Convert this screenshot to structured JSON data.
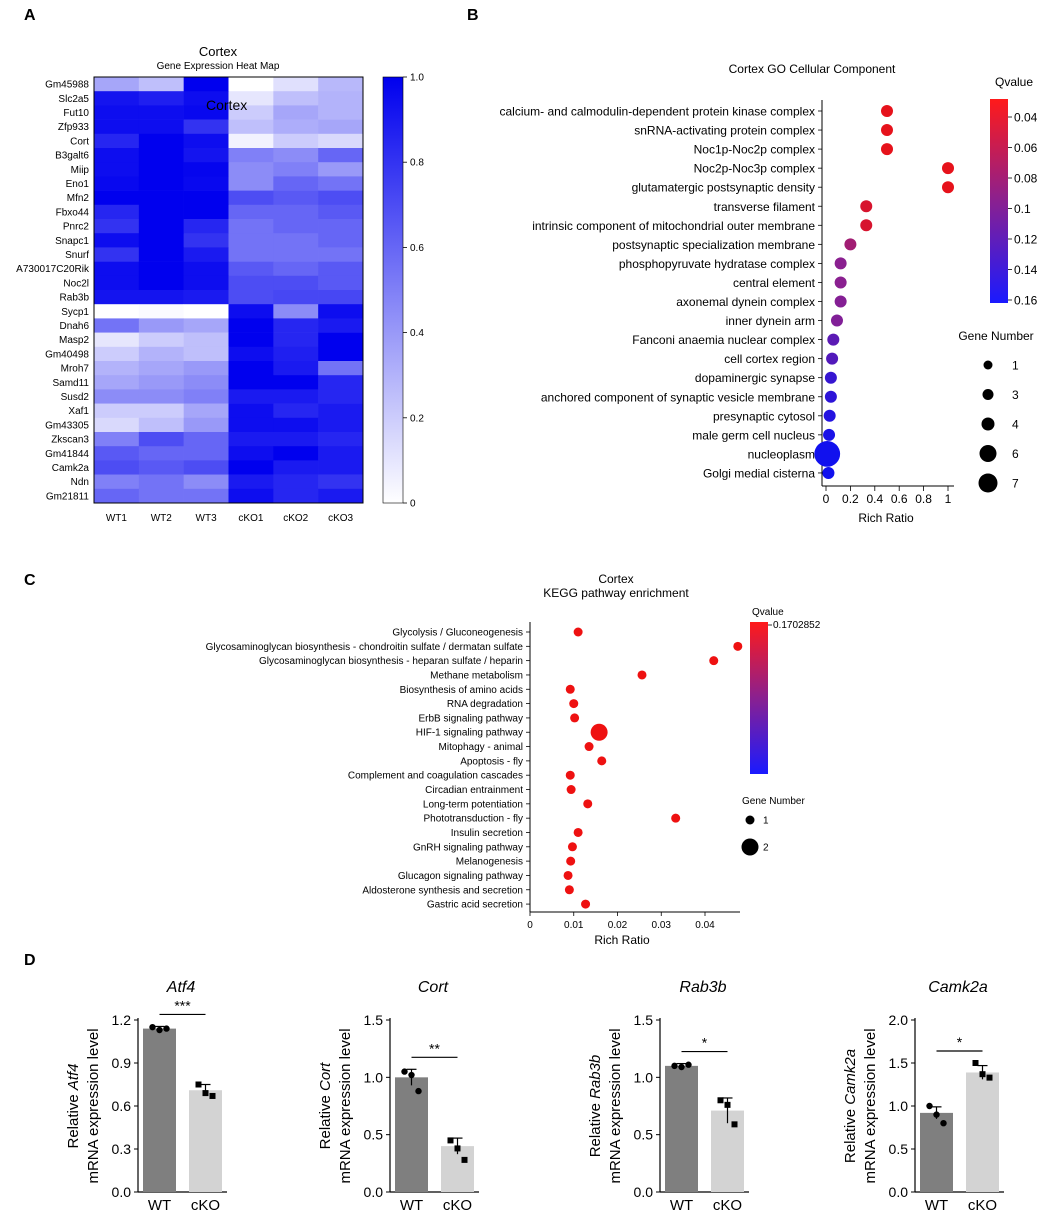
{
  "panel_labels": [
    "A",
    "B",
    "C",
    "D"
  ],
  "colors": {
    "heat_high": "#0000ee",
    "heat_low": "#ffffff",
    "q_low": "#ee1111",
    "q_high": "#1111ee",
    "wt_bar": "#7f7f7f",
    "cko_bar": "#d3d3d3"
  },
  "chart_data": [
    {
      "type": "heatmap",
      "title": "Cortex",
      "subtitle": "Gene Expression Heat Map",
      "overlay_label": "Cortex",
      "rows": [
        "Gm45988",
        "Slc2a5",
        "Fut10",
        "Zfp933",
        "Cort",
        "B3galt6",
        "Miip",
        "Eno1",
        "Mfn2",
        "Fbxo44",
        "Pnrc2",
        "Snapc1",
        "Snurf",
        "A730017C20Rik",
        "Noc2l",
        "Rab3b",
        "Sycp1",
        "Dnah6",
        "Masp2",
        "Gm40498",
        "Mroh7",
        "Samd11",
        "Susd2",
        "Xaf1",
        "Gm43305",
        "Zkscan3",
        "Gm41844",
        "Camk2a",
        "Ndn",
        "Gm21811"
      ],
      "columns": [
        "WT1",
        "WT2",
        "WT3",
        "cKO1",
        "cKO2",
        "cKO3"
      ],
      "values": [
        [
          0.35,
          0.25,
          1.0,
          0.0,
          0.12,
          0.28
        ],
        [
          0.92,
          0.88,
          0.95,
          0.1,
          0.25,
          0.3
        ],
        [
          0.95,
          0.95,
          0.97,
          0.2,
          0.35,
          0.3
        ],
        [
          0.95,
          0.95,
          0.8,
          0.25,
          0.32,
          0.35
        ],
        [
          0.85,
          1.0,
          0.95,
          0.05,
          0.2,
          0.15
        ],
        [
          0.95,
          1.0,
          0.92,
          0.5,
          0.45,
          0.6
        ],
        [
          0.95,
          1.0,
          0.98,
          0.45,
          0.5,
          0.4
        ],
        [
          0.97,
          1.0,
          0.97,
          0.45,
          0.6,
          0.55
        ],
        [
          1.0,
          1.0,
          1.0,
          0.7,
          0.65,
          0.7
        ],
        [
          0.85,
          1.0,
          1.0,
          0.6,
          0.6,
          0.65
        ],
        [
          0.8,
          1.0,
          0.85,
          0.55,
          0.6,
          0.6
        ],
        [
          0.95,
          1.0,
          0.8,
          0.55,
          0.55,
          0.6
        ],
        [
          0.8,
          1.0,
          0.9,
          0.55,
          0.55,
          0.55
        ],
        [
          0.95,
          1.0,
          0.95,
          0.65,
          0.6,
          0.65
        ],
        [
          0.95,
          1.0,
          0.95,
          0.7,
          0.7,
          0.65
        ],
        [
          0.92,
          0.92,
          0.9,
          0.7,
          0.72,
          0.72
        ],
        [
          0.0,
          0.02,
          0.0,
          0.95,
          0.45,
          0.95
        ],
        [
          0.55,
          0.4,
          0.35,
          1.0,
          0.85,
          0.9
        ],
        [
          0.1,
          0.2,
          0.25,
          1.0,
          0.85,
          1.0
        ],
        [
          0.2,
          0.3,
          0.25,
          0.95,
          0.88,
          1.0
        ],
        [
          0.3,
          0.35,
          0.4,
          1.0,
          0.9,
          0.55
        ],
        [
          0.35,
          0.4,
          0.45,
          1.0,
          1.0,
          0.85
        ],
        [
          0.45,
          0.45,
          0.5,
          0.9,
          0.9,
          0.85
        ],
        [
          0.2,
          0.2,
          0.35,
          0.95,
          0.85,
          0.9
        ],
        [
          0.15,
          0.25,
          0.4,
          0.95,
          0.95,
          0.9
        ],
        [
          0.5,
          0.7,
          0.6,
          0.9,
          0.9,
          0.85
        ],
        [
          0.65,
          0.6,
          0.6,
          0.95,
          1.0,
          0.9
        ],
        [
          0.7,
          0.65,
          0.7,
          1.0,
          0.9,
          0.9
        ],
        [
          0.5,
          0.55,
          0.45,
          0.9,
          0.85,
          0.8
        ],
        [
          0.6,
          0.55,
          0.55,
          0.95,
          0.85,
          0.9
        ]
      ],
      "colorbar": {
        "range": [
          0,
          1.0
        ],
        "ticks": [
          "1.0",
          "0.8",
          "0.6",
          "0.4",
          "0.2",
          "0"
        ]
      }
    },
    {
      "type": "scatter",
      "title": "Cortex GO Cellular Component",
      "xlabel": "Rich Ratio",
      "xlim": [
        0,
        1.02
      ],
      "xticks": [
        "0",
        "0.2",
        "0.4",
        "0.6",
        "0.8",
        "1"
      ],
      "categories": [
        "calcium- and calmodulin-dependent protein kinase complex",
        "snRNA-activating protein complex",
        "Noc1p-Noc2p complex",
        "Noc2p-Noc3p complex",
        "glutamatergic postsynaptic density",
        "transverse filament",
        "intrinsic component of mitochondrial outer membrane",
        "postsynaptic specialization membrane",
        "phosphopyruvate hydratase complex",
        "central element",
        "axonemal dynein complex",
        "inner dynein arm",
        "Fanconi anaemia nuclear complex",
        "cell cortex region",
        "dopaminergic synapse",
        "anchored component of synaptic vesicle membrane",
        "presynaptic cytosol",
        "male germ cell nucleus",
        "nucleoplasm",
        "Golgi medial cisterna"
      ],
      "rich_ratio": [
        0.5,
        0.5,
        0.5,
        1.0,
        1.0,
        0.33,
        0.33,
        0.2,
        0.12,
        0.12,
        0.12,
        0.09,
        0.06,
        0.05,
        0.04,
        0.04,
        0.03,
        0.025,
        0.01,
        0.02
      ],
      "qvalue": [
        0.035,
        0.035,
        0.035,
        0.035,
        0.035,
        0.045,
        0.045,
        0.08,
        0.095,
        0.095,
        0.098,
        0.1,
        0.12,
        0.125,
        0.14,
        0.145,
        0.15,
        0.155,
        0.16,
        0.16
      ],
      "gene_number": [
        1,
        1,
        1,
        1,
        1,
        1,
        1,
        1,
        1,
        1,
        1,
        1,
        1,
        1,
        1,
        1,
        1,
        1,
        7,
        1
      ],
      "qvalue_legend": {
        "title": "Qvalue",
        "range": [
          0.03,
          0.16
        ],
        "ticks": [
          "0.04",
          "0.06",
          "0.08",
          "0.1",
          "0.12",
          "0.14",
          "0.16"
        ]
      },
      "size_legend": {
        "title": "Gene Number",
        "values": [
          "1",
          "3",
          "4",
          "6",
          "7"
        ]
      }
    },
    {
      "type": "scatter",
      "title": "Cortex",
      "subtitle": "KEGG pathway enrichment",
      "xlabel": "Rich Ratio",
      "xlim": [
        0,
        0.048
      ],
      "xticks": [
        "0",
        "0.01",
        "0.02",
        "0.03",
        "0.04"
      ],
      "categories": [
        "Glycolysis / Gluconeogenesis",
        "Glycosaminoglycan biosynthesis - chondroitin sulfate / dermatan sulfate",
        "Glycosaminoglycan biosynthesis - heparan sulfate / heparin",
        "Methane metabolism",
        "Biosynthesis of amino acids",
        "RNA degradation",
        "ErbB signaling pathway",
        "HIF-1 signaling pathway",
        "Mitophagy - animal",
        "Apoptosis - fly",
        "Complement and coagulation cascades",
        "Circadian entrainment",
        "Long-term potentiation",
        "Phototransduction - fly",
        "Insulin secretion",
        "GnRH signaling pathway",
        "Melanogenesis",
        "Glucagon signaling pathway",
        "Aldosterone synthesis and secretion",
        "Gastric acid secretion"
      ],
      "rich_ratio": [
        0.011,
        0.0475,
        0.042,
        0.0256,
        0.0092,
        0.01,
        0.0102,
        0.0158,
        0.0135,
        0.0164,
        0.0092,
        0.0094,
        0.0132,
        0.0333,
        0.011,
        0.0097,
        0.0093,
        0.0087,
        0.009,
        0.0127
      ],
      "gene_number": [
        1,
        1,
        1,
        1,
        1,
        1,
        1,
        2,
        1,
        1,
        1,
        1,
        1,
        1,
        1,
        1,
        1,
        1,
        1,
        1
      ],
      "qvalue_legend": {
        "title": "Qvalue",
        "tick": "0.1702852"
      },
      "size_legend": {
        "title": "Gene Number",
        "values": [
          "1",
          "2"
        ]
      }
    },
    {
      "type": "bar",
      "panels": [
        {
          "gene": "Atf4",
          "ylabel_prefix": "Relative",
          "ylabel_line2": "mRNA expression level",
          "categories": [
            "WT",
            "cKO"
          ],
          "values": [
            1.14,
            0.71
          ],
          "sem": [
            0.015,
            0.04
          ],
          "points": [
            [
              1.15,
              1.13,
              1.14
            ],
            [
              0.75,
              0.69,
              0.67
            ]
          ],
          "ylim": [
            0,
            1.2
          ],
          "yticks": [
            "0.0",
            "0.3",
            "0.6",
            "0.9",
            "1.2"
          ],
          "significance": "***"
        },
        {
          "gene": "Cort",
          "ylabel_prefix": "Relative",
          "ylabel_line2": "mRNA expression level",
          "categories": [
            "WT",
            "cKO"
          ],
          "values": [
            1.0,
            0.4
          ],
          "sem": [
            0.07,
            0.07
          ],
          "points": [
            [
              1.05,
              1.02,
              0.88
            ],
            [
              0.45,
              0.38,
              0.28
            ]
          ],
          "ylim": [
            0,
            1.5
          ],
          "yticks": [
            "0.0",
            "0.5",
            "1.0",
            "1.5"
          ],
          "significance": "**"
        },
        {
          "gene": "Rab3b",
          "ylabel_prefix": "Relative",
          "ylabel_line2": "mRNA expression level",
          "categories": [
            "WT",
            "cKO"
          ],
          "values": [
            1.1,
            0.71
          ],
          "sem": [
            0.02,
            0.11
          ],
          "points": [
            [
              1.1,
              1.09,
              1.11
            ],
            [
              0.8,
              0.76,
              0.59
            ]
          ],
          "ylim": [
            0,
            1.5
          ],
          "yticks": [
            "0.0",
            "0.5",
            "1.0",
            "1.5"
          ],
          "significance": "*"
        },
        {
          "gene": "Camk2a",
          "ylabel_prefix": "Relative",
          "ylabel_line2": "mRNA expression level",
          "categories": [
            "WT",
            "cKO"
          ],
          "values": [
            0.92,
            1.39
          ],
          "sem": [
            0.07,
            0.08
          ],
          "points": [
            [
              1.0,
              0.9,
              0.8
            ],
            [
              1.5,
              1.37,
              1.33
            ]
          ],
          "ylim": [
            0,
            2.0
          ],
          "yticks": [
            "0.0",
            "0.5",
            "1.0",
            "1.5",
            "2.0"
          ],
          "significance": "*"
        }
      ]
    }
  ]
}
